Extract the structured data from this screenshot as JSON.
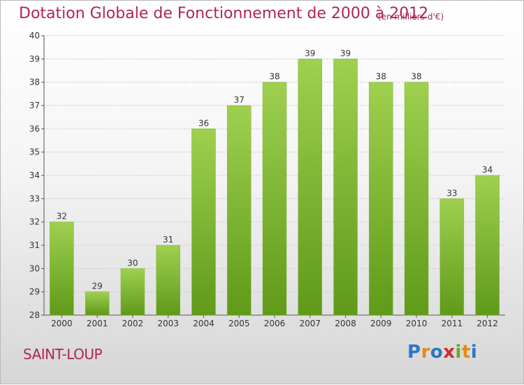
{
  "header": {
    "title": "Dotation Globale de Fonctionnement de 2000 à 2012",
    "subtitle": "(en milliers d'€)"
  },
  "footer": {
    "place": "SAINT-LOUP",
    "logo_text": "Proxiti"
  },
  "colors": {
    "text_accent": "#b0245a",
    "bar_top": "#9fd050",
    "bar_bottom": "#5f9a18",
    "logo": [
      "#2c76c8",
      "#e88a1a",
      "#2c76c8",
      "#d8272e",
      "#6aa626",
      "#e88a1a",
      "#2c76c8"
    ]
  },
  "chart_data": {
    "type": "bar",
    "categories": [
      "2000",
      "2001",
      "2002",
      "2003",
      "2004",
      "2005",
      "2006",
      "2007",
      "2008",
      "2009",
      "2010",
      "2011",
      "2012"
    ],
    "values": [
      32,
      29,
      30,
      31,
      36,
      37,
      38,
      39,
      39,
      38,
      38,
      33,
      34
    ],
    "ylim": [
      28,
      40
    ],
    "yticks": [
      28,
      29,
      30,
      31,
      32,
      33,
      34,
      35,
      36,
      37,
      38,
      39,
      40
    ],
    "grid": true
  }
}
